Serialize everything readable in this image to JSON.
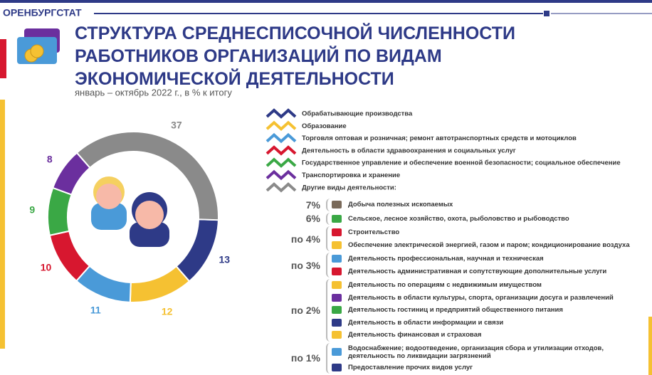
{
  "header": {
    "org": "ОРЕНБУРГСТАТ",
    "title_lines": [
      "СТРУКТУРА СРЕДНЕСПИСОЧНОЙ ЧИСЛЕННОСТИ",
      "РАБОТНИКОВ  ОРГАНИЗАЦИЙ ПО ВИДАМ",
      "ЭКОНОМИЧЕСКОЙ ДЕЯТЕЛЬНОСТИ"
    ],
    "subtitle": "январь – октябрь 2022 г., в % к итогу"
  },
  "chart_data": {
    "type": "donut",
    "categories": [
      "Обрабатывающие производства",
      "Образование",
      "Торговля оптовая и розничная; ремонт автотранспортных средств и мотоциклов",
      "Деятельность в области здравоохранения и социальных услуг",
      "Государственное управление и обеспечение военной безопасности; социальное обеспечение",
      "Транспортировка и хранение",
      "Другие виды деятельности:"
    ],
    "values": [
      13,
      12,
      11,
      10,
      9,
      8,
      37
    ],
    "colors": [
      "#2e3a87",
      "#f5c132",
      "#4a9ad8",
      "#d7172f",
      "#3aa845",
      "#6b2f9e",
      "#8a8a8a"
    ]
  },
  "breakdown": [
    {
      "share": "7%",
      "items": [
        "Добыча полезных ископаемых"
      ]
    },
    {
      "share": "6%",
      "items": [
        "Сельское, лесное хозяйство, охота, рыболовство и рыбоводство"
      ]
    },
    {
      "share": "по 4%",
      "items": [
        "Строительство",
        "Обеспечение электрической энергией, газом и паром; кондиционирование воздуха"
      ]
    },
    {
      "share": "по 3%",
      "items": [
        "Деятельность профессиональная, научная и техническая",
        "Деятельность административная и сопутствующие дополнительные услуги"
      ]
    },
    {
      "share": "по 2%",
      "items": [
        "Деятельность по операциям с недвижимым имуществом",
        "Деятельность в области культуры, спорта, организации досуга и развлечений",
        "Деятельность гостиниц и предприятий общественного питания",
        "Деятельность в области информации и связи",
        "Деятельность финансовая и страховая"
      ]
    },
    {
      "share": "по 1%",
      "items": [
        "Водоснабжение; водоотведение, организация сбора и утилизации отходов, деятельность по ликвидации загрязнений",
        "Предоставление прочих видов услуг"
      ]
    }
  ]
}
